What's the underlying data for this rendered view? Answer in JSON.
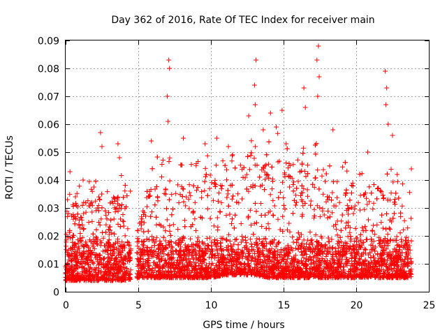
{
  "chart_data": {
    "type": "scatter",
    "title": "Day 362 of 2016, Rate Of TEC Index for receiver main",
    "xlabel": "GPS time / hours",
    "ylabel": "ROTI / TECUs",
    "xlim": [
      0,
      25
    ],
    "ylim": [
      0,
      0.09
    ],
    "x_ticks": [
      0,
      5,
      10,
      15,
      20,
      25
    ],
    "x_tick_labels": [
      "0",
      "5",
      "10",
      "15",
      "20",
      "25"
    ],
    "y_ticks": [
      0,
      0.01,
      0.02,
      0.03,
      0.04,
      0.05,
      0.06,
      0.07,
      0.08,
      0.09
    ],
    "y_tick_labels": [
      "0",
      "0.01",
      "0.02",
      "0.03",
      "0.04",
      "0.05",
      "0.06",
      "0.07",
      "0.08",
      "0.09"
    ],
    "grid": true,
    "marker": "+",
    "color": "#ff0000",
    "data_gap_hours": [
      4.5,
      4.9
    ],
    "envelope": {
      "hours": [
        0,
        1,
        2,
        3,
        4,
        5,
        6,
        7,
        8,
        9,
        10,
        11,
        12,
        13,
        14,
        15,
        16,
        17,
        18,
        19,
        20,
        21,
        22,
        23,
        23.8
      ],
      "typical_max": [
        0.03,
        0.033,
        0.034,
        0.034,
        0.036,
        0.027,
        0.04,
        0.042,
        0.038,
        0.04,
        0.042,
        0.04,
        0.044,
        0.047,
        0.048,
        0.048,
        0.046,
        0.046,
        0.044,
        0.04,
        0.035,
        0.036,
        0.04,
        0.034,
        0.03
      ],
      "floor": [
        0.004,
        0.004,
        0.004,
        0.004,
        0.004,
        0.005,
        0.005,
        0.005,
        0.005,
        0.005,
        0.005,
        0.006,
        0.006,
        0.006,
        0.005,
        0.005,
        0.005,
        0.005,
        0.005,
        0.005,
        0.005,
        0.005,
        0.005,
        0.005,
        0.005
      ]
    },
    "spikes": [
      {
        "x": 0.3,
        "y": 0.043
      },
      {
        "x": 1.2,
        "y": 0.04
      },
      {
        "x": 2.4,
        "y": 0.057
      },
      {
        "x": 2.5,
        "y": 0.052
      },
      {
        "x": 3.6,
        "y": 0.053
      },
      {
        "x": 3.7,
        "y": 0.048
      },
      {
        "x": 5.9,
        "y": 0.054
      },
      {
        "x": 7.0,
        "y": 0.07
      },
      {
        "x": 7.1,
        "y": 0.083
      },
      {
        "x": 7.15,
        "y": 0.08
      },
      {
        "x": 7.05,
        "y": 0.061
      },
      {
        "x": 8.1,
        "y": 0.055
      },
      {
        "x": 9.6,
        "y": 0.053
      },
      {
        "x": 10.4,
        "y": 0.055
      },
      {
        "x": 11.2,
        "y": 0.052
      },
      {
        "x": 12.6,
        "y": 0.063
      },
      {
        "x": 13.0,
        "y": 0.074
      },
      {
        "x": 13.1,
        "y": 0.083
      },
      {
        "x": 13.05,
        "y": 0.067
      },
      {
        "x": 13.6,
        "y": 0.058
      },
      {
        "x": 14.1,
        "y": 0.064
      },
      {
        "x": 14.5,
        "y": 0.059
      },
      {
        "x": 14.9,
        "y": 0.065
      },
      {
        "x": 16.4,
        "y": 0.073
      },
      {
        "x": 16.5,
        "y": 0.066
      },
      {
        "x": 17.3,
        "y": 0.083
      },
      {
        "x": 17.4,
        "y": 0.088
      },
      {
        "x": 17.45,
        "y": 0.077
      },
      {
        "x": 17.35,
        "y": 0.07
      },
      {
        "x": 18.4,
        "y": 0.058
      },
      {
        "x": 20.8,
        "y": 0.05
      },
      {
        "x": 22.0,
        "y": 0.079
      },
      {
        "x": 22.1,
        "y": 0.073
      },
      {
        "x": 22.05,
        "y": 0.067
      },
      {
        "x": 22.2,
        "y": 0.06
      },
      {
        "x": 22.5,
        "y": 0.056
      },
      {
        "x": 23.8,
        "y": 0.044
      }
    ]
  }
}
